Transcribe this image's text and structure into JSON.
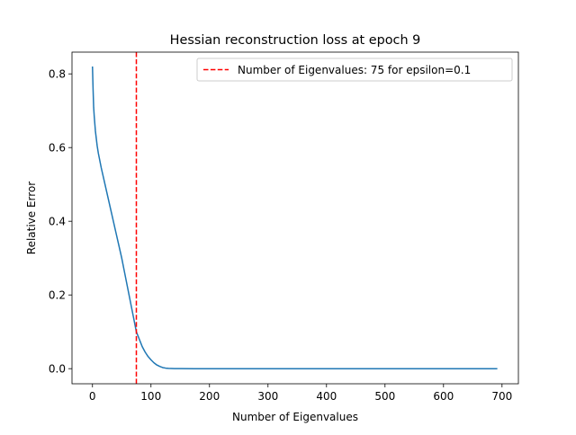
{
  "chart_data": {
    "type": "line",
    "title": "Hessian reconstruction loss at epoch 9",
    "xlabel": "Number of Eigenvalues",
    "ylabel": "Relative Error",
    "xlim": [
      -35,
      728
    ],
    "ylim": [
      -0.041,
      0.859
    ],
    "xticks": [
      0,
      100,
      200,
      300,
      400,
      500,
      600,
      700
    ],
    "xtick_labels": [
      "0",
      "100",
      "200",
      "300",
      "400",
      "500",
      "600",
      "700"
    ],
    "yticks": [
      0.0,
      0.2,
      0.4,
      0.6,
      0.8
    ],
    "ytick_labels": [
      "0.0",
      "0.2",
      "0.4",
      "0.6",
      "0.8"
    ],
    "grid": false,
    "legend": {
      "placement": "top-right"
    },
    "series": [
      {
        "name": "",
        "color": "#1f77b4",
        "x": [
          0,
          1,
          2,
          3,
          5,
          8,
          10,
          15,
          20,
          25,
          30,
          35,
          40,
          45,
          50,
          55,
          60,
          65,
          70,
          75,
          80,
          85,
          90,
          95,
          100,
          105,
          110,
          115,
          120,
          125,
          130,
          140,
          150,
          175,
          200,
          300,
          400,
          500,
          600,
          692
        ],
        "y": [
          0.82,
          0.76,
          0.71,
          0.685,
          0.645,
          0.605,
          0.585,
          0.545,
          0.51,
          0.475,
          0.44,
          0.405,
          0.37,
          0.335,
          0.3,
          0.26,
          0.22,
          0.18,
          0.14,
          0.1,
          0.08,
          0.06,
          0.045,
          0.033,
          0.024,
          0.016,
          0.01,
          0.006,
          0.003,
          0.0015,
          0.0008,
          0.0003,
          0.0001,
          0.0,
          0.0,
          0.0,
          0.0,
          0.0,
          0.0,
          0.0
        ]
      },
      {
        "name": "Number of Eigenvalues: 75 for epsilon=0.1",
        "type": "vline",
        "color": "#ff0000",
        "dash": "dashed",
        "x": 75
      }
    ]
  }
}
